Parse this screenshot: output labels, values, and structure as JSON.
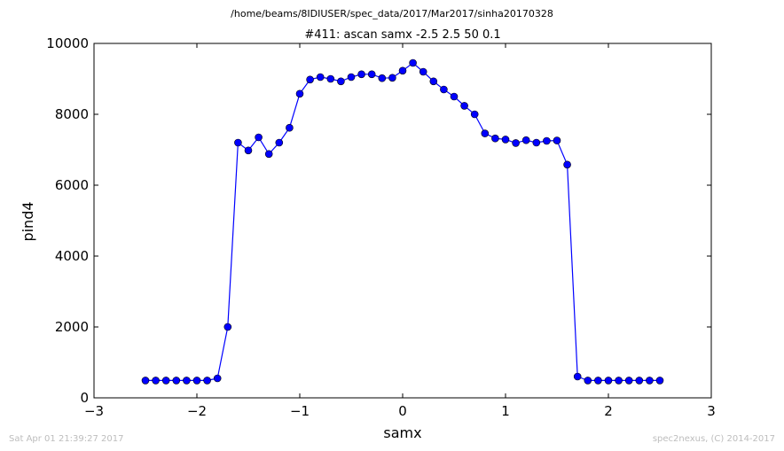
{
  "header": {
    "path": "/home/beams/8IDIUSER/spec_data/2017/Mar2017/sinha20170328",
    "title": "#411: ascan  samx -2.5 2.5  50 0.1"
  },
  "footer": {
    "timestamp": "Sat Apr 01 21:39:27 2017",
    "credit": "spec2nexus, (C) 2014-2017"
  },
  "chart_data": {
    "type": "line",
    "title": "#411: ascan  samx -2.5 2.5  50 0.1",
    "xlabel": "samx",
    "ylabel": "pind4",
    "xlim": [
      -3,
      3
    ],
    "ylim": [
      0,
      10000
    ],
    "xticks": [
      -3,
      -2,
      -1,
      0,
      1,
      2,
      3
    ],
    "xtick_labels": [
      "−3",
      "−2",
      "−1",
      "0",
      "1",
      "2",
      "3"
    ],
    "yticks": [
      0,
      2000,
      4000,
      6000,
      8000,
      10000
    ],
    "ytick_labels": [
      "0",
      "2000",
      "4000",
      "6000",
      "8000",
      "10000"
    ],
    "grid": false,
    "color": "#0000ff",
    "marker": "circle",
    "x": [
      -2.5,
      -2.4,
      -2.3,
      -2.2,
      -2.1,
      -2.0,
      -1.9,
      -1.8,
      -1.7,
      -1.6,
      -1.5,
      -1.4,
      -1.3,
      -1.2,
      -1.1,
      -1.0,
      -0.9,
      -0.8,
      -0.7,
      -0.6,
      -0.5,
      -0.4,
      -0.3,
      -0.2,
      -0.1,
      0.0,
      0.1,
      0.2,
      0.3,
      0.4,
      0.5,
      0.6,
      0.7,
      0.8,
      0.9,
      1.0,
      1.1,
      1.2,
      1.3,
      1.4,
      1.5,
      1.6,
      1.7,
      1.8,
      1.9,
      2.0,
      2.1,
      2.2,
      2.3,
      2.4,
      2.5
    ],
    "y": [
      490,
      490,
      490,
      490,
      490,
      490,
      490,
      550,
      2000,
      7200,
      6980,
      7350,
      6880,
      7200,
      7620,
      8580,
      8980,
      9050,
      9000,
      8930,
      9050,
      9130,
      9130,
      9020,
      9030,
      9230,
      9450,
      9200,
      8930,
      8700,
      8500,
      8240,
      8000,
      7460,
      7320,
      7290,
      7190,
      7270,
      7200,
      7250,
      7260,
      6580,
      600,
      490,
      490,
      490,
      490,
      490,
      490,
      490,
      490
    ]
  }
}
